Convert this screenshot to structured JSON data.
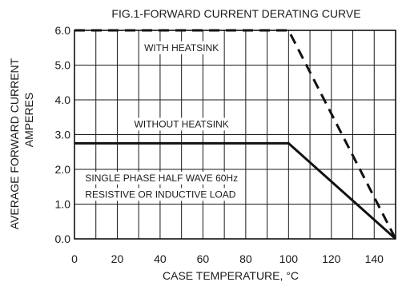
{
  "chart_data": {
    "type": "line",
    "title": "FIG.1-FORWARD CURRENT DERATING CURVE",
    "xlabel": "CASE TEMPERATURE, °C",
    "ylabel_lines": [
      "AVERAGE FORWARD CURRENT",
      "AMPERES"
    ],
    "xlim": [
      0,
      150
    ],
    "ylim": [
      0,
      6.0
    ],
    "x_ticks": [
      {
        "value": 0,
        "label": "0"
      },
      {
        "value": 20,
        "label": "20"
      },
      {
        "value": 40,
        "label": "40"
      },
      {
        "value": 60,
        "label": "60"
      },
      {
        "value": 80,
        "label": "80"
      },
      {
        "value": 100,
        "label": "100"
      },
      {
        "value": 120,
        "label": "120"
      },
      {
        "value": 140,
        "label": "140"
      }
    ],
    "y_ticks": [
      {
        "value": 0,
        "label": "0.0"
      },
      {
        "value": 1,
        "label": "1.0"
      },
      {
        "value": 2,
        "label": "2.0"
      },
      {
        "value": 3,
        "label": "3.0"
      },
      {
        "value": 4,
        "label": "4.0"
      },
      {
        "value": 5,
        "label": "5.0"
      },
      {
        "value": 6,
        "label": "6.0"
      }
    ],
    "grid": true,
    "legend": "none",
    "series": [
      {
        "label": "WITH HEATSINK",
        "style": "dashed",
        "x": [
          0,
          100,
          150
        ],
        "y": [
          6.0,
          6.0,
          0.0
        ]
      },
      {
        "label": "WITHOUT HEATSINK",
        "style": "solid",
        "x": [
          0,
          100,
          150
        ],
        "y": [
          2.75,
          2.75,
          0.0
        ]
      }
    ],
    "annotations": [
      {
        "text": "WITH HEATSINK",
        "x": 50,
        "y": 5.5
      },
      {
        "text": "WITHOUT HEATSINK",
        "x": 50,
        "y": 3.3
      },
      {
        "text": "SINGLE PHASE HALF WAVE  60Hz",
        "x": 5,
        "y": 1.75
      },
      {
        "text": "RESISTIVE OR INDUCTIVE LOAD",
        "x": 5,
        "y": 1.28
      }
    ],
    "colors": {
      "line": "#111111",
      "grid": "#1a1a1a",
      "text": "#1a1a1a",
      "background": "#ffffff"
    }
  }
}
